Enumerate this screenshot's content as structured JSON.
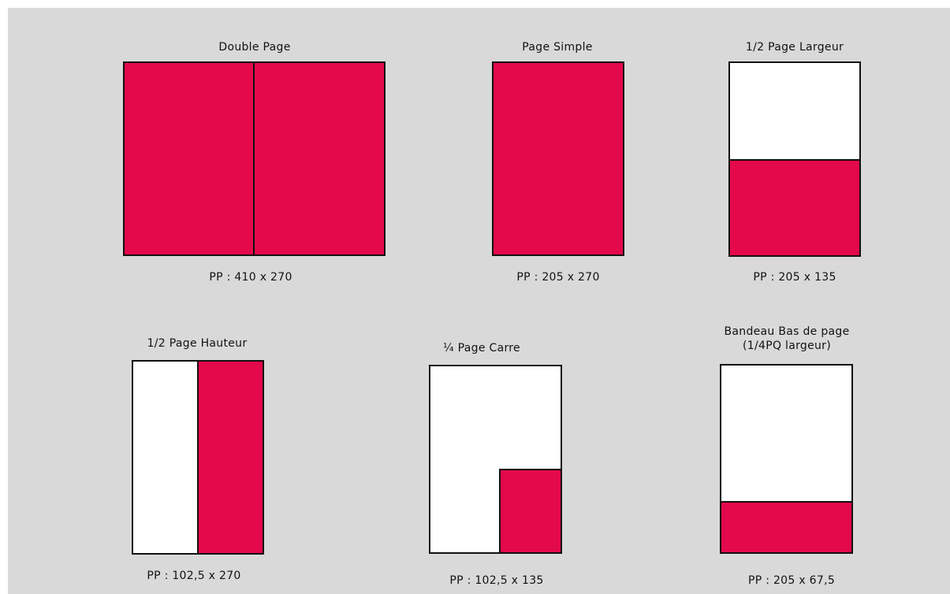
{
  "colors": {
    "background": "#d9d9d9",
    "accent": "#e3094a",
    "blank": "#ffffff",
    "stroke": "#111111"
  },
  "formats": [
    {
      "id": "double-page",
      "title": "Double Page",
      "caption": "PP : 410 x 270"
    },
    {
      "id": "page-simple",
      "title": "Page Simple",
      "caption": "PP : 205 x 270"
    },
    {
      "id": "half-page-width",
      "title": "1/2 Page Largeur",
      "caption": "PP : 205 x 135"
    },
    {
      "id": "half-page-height",
      "title": "1/2 Page Hauteur",
      "caption": "PP : 102,5 x 270"
    },
    {
      "id": "quarter-page-square",
      "title": "¼ Page Carre",
      "caption": "PP : 102,5 x 135"
    },
    {
      "id": "bottom-banner",
      "title": "Bandeau Bas de page\n(1/4PQ largeur)",
      "caption": "PP : 205 x 67,5"
    }
  ]
}
